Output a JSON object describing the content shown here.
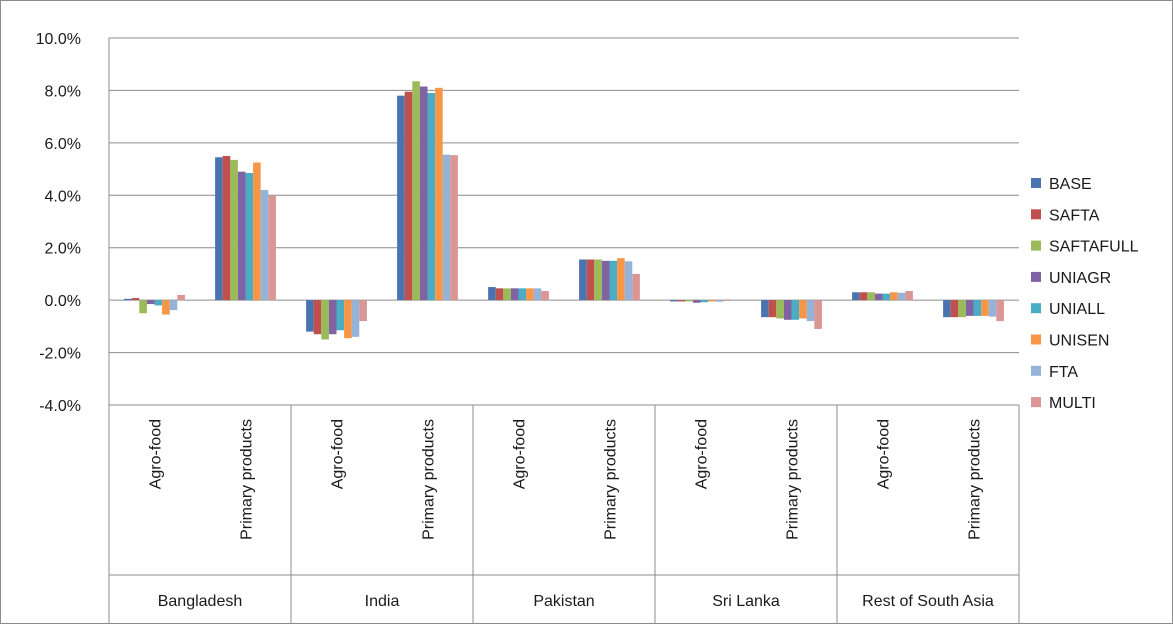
{
  "chart_data": {
    "type": "bar",
    "title": "",
    "xlabel": "",
    "ylabel": "",
    "ylim": [
      -0.04,
      0.1
    ],
    "yticks": [
      -0.04,
      -0.02,
      0.0,
      0.02,
      0.04,
      0.06,
      0.08,
      0.1
    ],
    "ytick_labels": [
      "-4.0%",
      "-2.0%",
      "0.0%",
      "2.0%",
      "4.0%",
      "6.0%",
      "8.0%",
      "10.0%"
    ],
    "grid": true,
    "legend_position": "right",
    "groups": [
      {
        "name": "Bangladesh",
        "categories": [
          "Agro-food",
          "Primary products"
        ]
      },
      {
        "name": "India",
        "categories": [
          "Agro-food",
          "Primary products"
        ]
      },
      {
        "name": "Pakistan",
        "categories": [
          "Agro-food",
          "Primary products"
        ]
      },
      {
        "name": "Sri Lanka",
        "categories": [
          "Agro-food",
          "Primary products"
        ]
      },
      {
        "name": "Rest of South Asia",
        "categories": [
          "Agro-food",
          "Primary products"
        ]
      }
    ],
    "series": [
      {
        "name": "BASE",
        "color": "#4a74b0",
        "values": [
          0.0005,
          0.0545,
          -0.012,
          0.078,
          0.005,
          0.0155,
          -0.0005,
          -0.0065,
          0.003,
          -0.0065
        ]
      },
      {
        "name": "SAFTA",
        "color": "#c0504d",
        "values": [
          0.0008,
          0.055,
          -0.013,
          0.0795,
          0.0045,
          0.0155,
          -0.0005,
          -0.0065,
          0.003,
          -0.0065
        ]
      },
      {
        "name": "SAFTAFULL",
        "color": "#9bbb59",
        "values": [
          -0.005,
          0.0535,
          -0.015,
          0.0835,
          0.0045,
          0.0155,
          -0.0005,
          -0.007,
          0.003,
          -0.0065
        ]
      },
      {
        "name": "UNIAGR",
        "color": "#7f63a2",
        "values": [
          -0.0015,
          0.049,
          -0.013,
          0.0815,
          0.0045,
          0.015,
          -0.001,
          -0.0075,
          0.0025,
          -0.006
        ]
      },
      {
        "name": "UNIALL",
        "color": "#4bacc6",
        "values": [
          -0.002,
          0.0485,
          -0.0115,
          0.079,
          0.0045,
          0.015,
          -0.0008,
          -0.0075,
          0.0025,
          -0.006
        ]
      },
      {
        "name": "UNISEN",
        "color": "#f79646",
        "values": [
          -0.0055,
          0.0525,
          -0.0145,
          0.081,
          0.0045,
          0.016,
          -0.0005,
          -0.007,
          0.003,
          -0.006
        ]
      },
      {
        "name": "FTA",
        "color": "#95b3d7",
        "values": [
          -0.0038,
          0.042,
          -0.014,
          0.0555,
          0.0045,
          0.0148,
          -0.0006,
          -0.008,
          0.0028,
          -0.0063
        ]
      },
      {
        "name": "MULTI",
        "color": "#da9694",
        "values": [
          0.002,
          0.0398,
          -0.008,
          0.0553,
          0.0035,
          0.01,
          -0.0003,
          -0.011,
          0.0035,
          -0.008
        ]
      }
    ]
  }
}
